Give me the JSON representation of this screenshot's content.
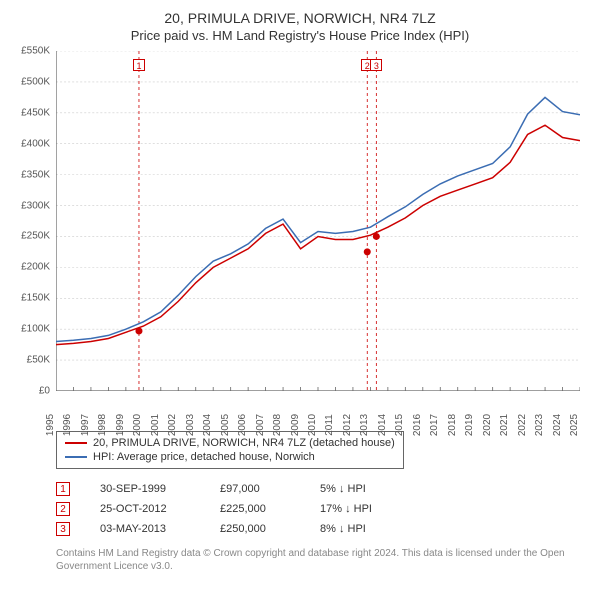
{
  "title_line1": "20, PRIMULA DRIVE, NORWICH, NR4 7LZ",
  "title_line2": "Price paid vs. HM Land Registry's House Price Index (HPI)",
  "chart": {
    "type": "line",
    "background_color": "#ffffff",
    "grid_color": "#cccccc",
    "axis_color": "#666666",
    "label_fontsize": 10,
    "x_years": [
      1995,
      1996,
      1997,
      1998,
      1999,
      2000,
      2001,
      2002,
      2003,
      2004,
      2005,
      2006,
      2007,
      2008,
      2009,
      2010,
      2011,
      2012,
      2013,
      2014,
      2015,
      2016,
      2017,
      2018,
      2019,
      2020,
      2021,
      2022,
      2023,
      2024,
      2025
    ],
    "ylim": [
      0,
      550000
    ],
    "ytick_step": 50000,
    "y_prefix": "£",
    "y_suffix": "K",
    "series": [
      {
        "name": "price_paid",
        "label": "20, PRIMULA DRIVE, NORWICH, NR4 7LZ (detached house)",
        "color": "#cc0000",
        "line_width": 1.5,
        "values_by_year": {
          "1995": 75000,
          "1996": 77000,
          "1997": 80000,
          "1998": 85000,
          "1999": 95000,
          "2000": 105000,
          "2001": 120000,
          "2002": 145000,
          "2003": 175000,
          "2004": 200000,
          "2005": 215000,
          "2006": 230000,
          "2007": 255000,
          "2008": 270000,
          "2009": 230000,
          "2010": 250000,
          "2011": 245000,
          "2012": 245000,
          "2013": 252000,
          "2014": 265000,
          "2015": 280000,
          "2016": 300000,
          "2017": 315000,
          "2018": 325000,
          "2019": 335000,
          "2020": 345000,
          "2021": 370000,
          "2022": 415000,
          "2023": 430000,
          "2024": 410000,
          "2025": 405000
        }
      },
      {
        "name": "hpi",
        "label": "HPI: Average price, detached house, Norwich",
        "color": "#3b6db3",
        "line_width": 1.5,
        "values_by_year": {
          "1995": 80000,
          "1996": 82000,
          "1997": 85000,
          "1998": 90000,
          "1999": 100000,
          "2000": 112000,
          "2001": 128000,
          "2002": 155000,
          "2003": 185000,
          "2004": 210000,
          "2005": 222000,
          "2006": 238000,
          "2007": 263000,
          "2008": 278000,
          "2009": 240000,
          "2010": 258000,
          "2011": 255000,
          "2012": 258000,
          "2013": 265000,
          "2014": 282000,
          "2015": 298000,
          "2016": 318000,
          "2017": 335000,
          "2018": 348000,
          "2019": 358000,
          "2020": 368000,
          "2021": 395000,
          "2022": 448000,
          "2023": 475000,
          "2024": 452000,
          "2025": 447000
        }
      }
    ],
    "event_markers": [
      {
        "n": "1",
        "year": 1999.75,
        "y": 97000,
        "color": "#cc0000",
        "line_color": "#cc0000"
      },
      {
        "n": "2",
        "year": 2012.82,
        "y": 225000,
        "color": "#cc0000",
        "line_color": "#cc0000"
      },
      {
        "n": "3",
        "year": 2013.34,
        "y": 250000,
        "color": "#cc0000",
        "line_color": "#cc0000"
      }
    ]
  },
  "legend": {
    "series_0": "20, PRIMULA DRIVE, NORWICH, NR4 7LZ (detached house)",
    "series_1": "HPI: Average price, detached house, Norwich",
    "color_0": "#cc0000",
    "color_1": "#3b6db3"
  },
  "events": [
    {
      "n": "1",
      "date": "30-SEP-1999",
      "price": "£97,000",
      "diff": "5% ↓ HPI",
      "color": "#cc0000"
    },
    {
      "n": "2",
      "date": "25-OCT-2012",
      "price": "£225,000",
      "diff": "17% ↓ HPI",
      "color": "#cc0000"
    },
    {
      "n": "3",
      "date": "03-MAY-2013",
      "price": "£250,000",
      "diff": "8% ↓ HPI",
      "color": "#cc0000"
    }
  ],
  "attribution": "Contains HM Land Registry data © Crown copyright and database right 2024. This data is licensed under the Open Government Licence v3.0."
}
